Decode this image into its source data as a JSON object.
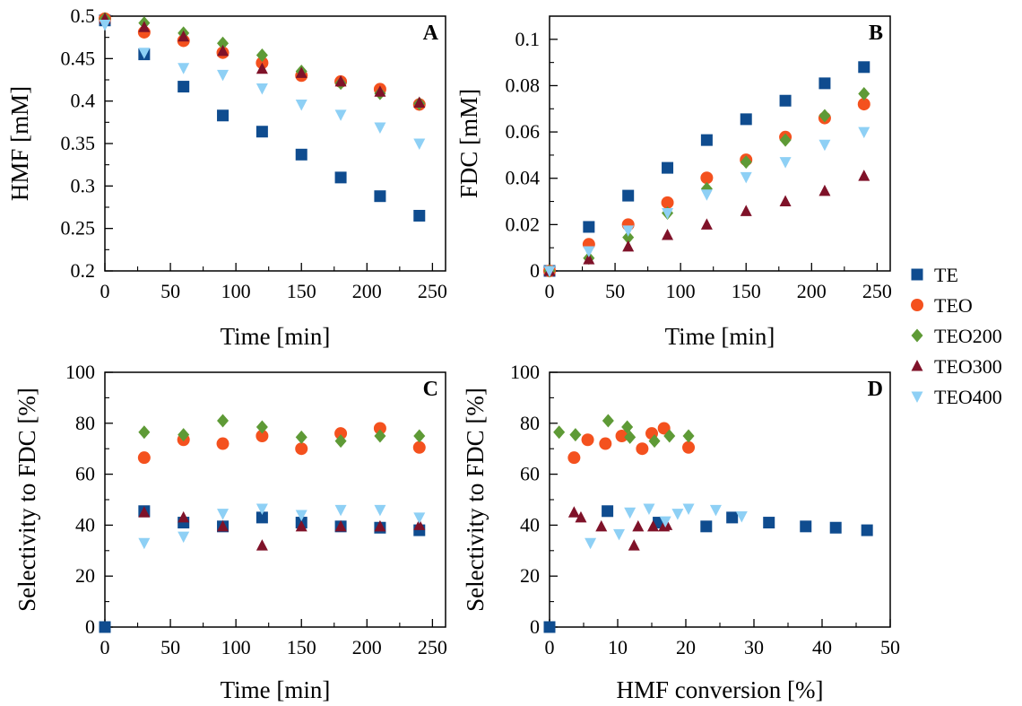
{
  "series_styles": {
    "TE": {
      "color": "#0F4C8F",
      "marker": "square"
    },
    "TEO": {
      "color": "#F4511E",
      "marker": "circle"
    },
    "TEO200": {
      "color": "#5E9A36",
      "marker": "diamond"
    },
    "TEO300": {
      "color": "#7F1229",
      "marker": "triangle-up"
    },
    "TEO400": {
      "color": "#8ED0F5",
      "marker": "triangle-down"
    }
  },
  "legend": {
    "placement": "right, between panels",
    "entries": [
      "TE",
      "TEO",
      "TEO200",
      "TEO300",
      "TEO400"
    ]
  },
  "chart_data": [
    {
      "panel": "A",
      "type": "scatter",
      "xlabel": "Time [min]",
      "ylabel": "HMF [mM]",
      "xlim": [
        0,
        260
      ],
      "ylim": [
        0.2,
        0.5
      ],
      "xticks": [
        0,
        50,
        100,
        150,
        200,
        250
      ],
      "yticks": [
        0.2,
        0.25,
        0.3,
        0.35,
        0.4,
        0.45,
        0.5
      ],
      "ytick_labels": [
        "0.2",
        "0.25",
        "0.3",
        "0.35",
        "0.4",
        "0.45",
        "0.5"
      ],
      "series": [
        {
          "name": "TE",
          "points": [
            [
              0,
              0.495
            ],
            [
              30,
              0.455
            ],
            [
              60,
              0.417
            ],
            [
              90,
              0.383
            ],
            [
              120,
              0.364
            ],
            [
              150,
              0.337
            ],
            [
              180,
              0.31
            ],
            [
              210,
              0.288
            ],
            [
              240,
              0.265
            ]
          ]
        },
        {
          "name": "TEO",
          "points": [
            [
              0,
              0.497
            ],
            [
              30,
              0.481
            ],
            [
              60,
              0.471
            ],
            [
              90,
              0.457
            ],
            [
              120,
              0.445
            ],
            [
              150,
              0.43
            ],
            [
              180,
              0.423
            ],
            [
              210,
              0.414
            ],
            [
              240,
              0.396
            ]
          ]
        },
        {
          "name": "TEO200",
          "points": [
            [
              0,
              0.497
            ],
            [
              30,
              0.492
            ],
            [
              60,
              0.48
            ],
            [
              90,
              0.468
            ],
            [
              120,
              0.454
            ],
            [
              150,
              0.435
            ],
            [
              180,
              0.421
            ],
            [
              210,
              0.409
            ],
            [
              240,
              0.397
            ]
          ]
        },
        {
          "name": "TEO300",
          "points": [
            [
              0,
              0.497
            ],
            [
              30,
              0.487
            ],
            [
              60,
              0.476
            ],
            [
              90,
              0.459
            ],
            [
              120,
              0.438
            ],
            [
              150,
              0.433
            ],
            [
              180,
              0.423
            ],
            [
              210,
              0.411
            ],
            [
              240,
              0.398
            ]
          ]
        },
        {
          "name": "TEO400",
          "points": [
            [
              0,
              0.49
            ],
            [
              30,
              0.457
            ],
            [
              60,
              0.439
            ],
            [
              90,
              0.431
            ],
            [
              120,
              0.415
            ],
            [
              150,
              0.396
            ],
            [
              180,
              0.384
            ],
            [
              210,
              0.369
            ],
            [
              240,
              0.35
            ]
          ]
        }
      ]
    },
    {
      "panel": "B",
      "type": "scatter",
      "xlabel": "Time [min]",
      "ylabel": "FDC [mM]",
      "xlim": [
        0,
        260
      ],
      "ylim": [
        0,
        0.11
      ],
      "xticks": [
        0,
        50,
        100,
        150,
        200,
        250
      ],
      "yticks": [
        0,
        0.02,
        0.04,
        0.06,
        0.08,
        0.1
      ],
      "ytick_labels": [
        "0",
        "0.02",
        "0.04",
        "0.06",
        "0.08",
        "0.1"
      ],
      "series": [
        {
          "name": "TE",
          "points": [
            [
              0,
              0.0
            ],
            [
              30,
              0.019
            ],
            [
              60,
              0.0325
            ],
            [
              90,
              0.0445
            ],
            [
              120,
              0.0565
            ],
            [
              150,
              0.0655
            ],
            [
              180,
              0.0735
            ],
            [
              210,
              0.081
            ],
            [
              240,
              0.088
            ]
          ]
        },
        {
          "name": "TEO",
          "points": [
            [
              0,
              0.0
            ],
            [
              30,
              0.0115
            ],
            [
              60,
              0.02
            ],
            [
              90,
              0.0295
            ],
            [
              120,
              0.0402
            ],
            [
              150,
              0.048
            ],
            [
              180,
              0.0578
            ],
            [
              210,
              0.066
            ],
            [
              240,
              0.072
            ]
          ]
        },
        {
          "name": "TEO200",
          "points": [
            [
              0,
              0.0
            ],
            [
              30,
              0.0055
            ],
            [
              60,
              0.0145
            ],
            [
              90,
              0.025
            ],
            [
              120,
              0.0355
            ],
            [
              150,
              0.047
            ],
            [
              180,
              0.0565
            ],
            [
              210,
              0.067
            ],
            [
              240,
              0.0765
            ]
          ]
        },
        {
          "name": "TEO300",
          "points": [
            [
              0,
              0.0
            ],
            [
              30,
              0.005
            ],
            [
              60,
              0.0105
            ],
            [
              90,
              0.0155
            ],
            [
              120,
              0.02
            ],
            [
              150,
              0.0258
            ],
            [
              180,
              0.03
            ],
            [
              210,
              0.0345
            ],
            [
              240,
              0.041
            ]
          ]
        },
        {
          "name": "TEO400",
          "points": [
            [
              0,
              0.0
            ],
            [
              30,
              0.0085
            ],
            [
              60,
              0.0175
            ],
            [
              90,
              0.025
            ],
            [
              120,
              0.033
            ],
            [
              150,
              0.0405
            ],
            [
              180,
              0.047
            ],
            [
              210,
              0.0545
            ],
            [
              240,
              0.06
            ]
          ]
        }
      ]
    },
    {
      "panel": "C",
      "type": "scatter",
      "xlabel": "Time [min]",
      "ylabel": "Selectivity to FDC [%]",
      "xlim": [
        0,
        260
      ],
      "ylim": [
        0,
        100
      ],
      "xticks": [
        0,
        50,
        100,
        150,
        200,
        250
      ],
      "yticks": [
        0,
        20,
        40,
        60,
        80,
        100
      ],
      "ytick_labels": [
        "0",
        "20",
        "40",
        "60",
        "80",
        "100"
      ],
      "series": [
        {
          "name": "TE",
          "points": [
            [
              0,
              0
            ],
            [
              30,
              45.5
            ],
            [
              60,
              41
            ],
            [
              90,
              39.5
            ],
            [
              120,
              43
            ],
            [
              150,
              41
            ],
            [
              180,
              39.5
            ],
            [
              210,
              39
            ],
            [
              240,
              38
            ]
          ]
        },
        {
          "name": "TEO",
          "points": [
            [
              30,
              66.5
            ],
            [
              60,
              73.5
            ],
            [
              90,
              72
            ],
            [
              120,
              75
            ],
            [
              150,
              70
            ],
            [
              180,
              76
            ],
            [
              210,
              78
            ],
            [
              240,
              70.5
            ]
          ]
        },
        {
          "name": "TEO200",
          "points": [
            [
              30,
              76.5
            ],
            [
              60,
              75.5
            ],
            [
              90,
              81
            ],
            [
              120,
              78.5
            ],
            [
              150,
              74.5
            ],
            [
              180,
              73
            ],
            [
              210,
              75
            ],
            [
              240,
              75
            ]
          ]
        },
        {
          "name": "TEO300",
          "points": [
            [
              30,
              45
            ],
            [
              60,
              43
            ],
            [
              90,
              39.5
            ],
            [
              120,
              32
            ],
            [
              150,
              39.5
            ],
            [
              180,
              39.5
            ],
            [
              210,
              39.5
            ],
            [
              240,
              40
            ]
          ]
        },
        {
          "name": "TEO400",
          "points": [
            [
              30,
              33
            ],
            [
              60,
              35.5
            ],
            [
              90,
              44.5
            ],
            [
              120,
              46.5
            ],
            [
              150,
              44
            ],
            [
              180,
              46
            ],
            [
              210,
              46
            ],
            [
              240,
              43
            ]
          ]
        }
      ]
    },
    {
      "panel": "D",
      "type": "scatter",
      "xlabel": "HMF conversion [%]",
      "ylabel": "Selectivity to FDC [%]",
      "xlim": [
        0,
        50
      ],
      "ylim": [
        0,
        100
      ],
      "xticks": [
        0,
        10,
        20,
        30,
        40,
        50
      ],
      "yticks": [
        0,
        20,
        40,
        60,
        80,
        100
      ],
      "ytick_labels": [
        "0",
        "20",
        "40",
        "60",
        "80",
        "100"
      ],
      "series": [
        {
          "name": "TE",
          "points": [
            [
              0,
              0
            ],
            [
              8.5,
              45.5
            ],
            [
              16,
              41
            ],
            [
              23,
              39.5
            ],
            [
              26.8,
              43
            ],
            [
              32.2,
              41
            ],
            [
              37.6,
              39.5
            ],
            [
              42,
              39
            ],
            [
              46.6,
              38
            ]
          ]
        },
        {
          "name": "TEO",
          "points": [
            [
              3.6,
              66.5
            ],
            [
              5.6,
              73.5
            ],
            [
              8.2,
              72
            ],
            [
              10.6,
              75
            ],
            [
              13.6,
              70
            ],
            [
              15,
              76
            ],
            [
              16.8,
              78
            ],
            [
              20.4,
              70.5
            ]
          ]
        },
        {
          "name": "TEO200",
          "points": [
            [
              1.4,
              76.5
            ],
            [
              3.8,
              75.5
            ],
            [
              8.6,
              81
            ],
            [
              11.4,
              78.5
            ],
            [
              11.8,
              74.5
            ],
            [
              15.4,
              73
            ],
            [
              17.6,
              75
            ],
            [
              20.4,
              75
            ]
          ]
        },
        {
          "name": "TEO300",
          "points": [
            [
              3.6,
              45
            ],
            [
              4.6,
              43
            ],
            [
              7.6,
              39.5
            ],
            [
              12.4,
              32
            ],
            [
              13,
              39.5
            ],
            [
              15.2,
              39.5
            ],
            [
              16.8,
              39.5
            ],
            [
              17.2,
              40
            ]
          ]
        },
        {
          "name": "TEO400",
          "points": [
            [
              6,
              33
            ],
            [
              10.2,
              36.5
            ],
            [
              11.8,
              45
            ],
            [
              14.6,
              46.5
            ],
            [
              17,
              41.5
            ],
            [
              18.8,
              44.5
            ],
            [
              20.4,
              46.5
            ],
            [
              24.4,
              46
            ],
            [
              28.2,
              43.5
            ]
          ]
        }
      ]
    }
  ]
}
